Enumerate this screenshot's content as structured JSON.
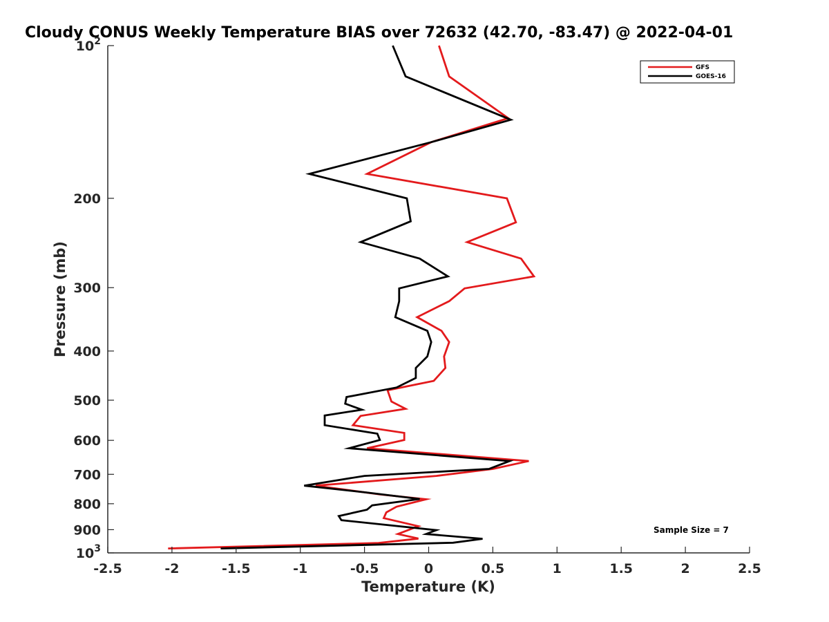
{
  "chart_data": {
    "type": "line",
    "title": "Cloudy CONUS Weekly Temperature BIAS over 72632 (42.70, -83.47) @ 2022-04-01",
    "xlabel": "Temperature (K)",
    "ylabel": "Pressure (mb)",
    "xlim": [
      -2.5,
      2.5
    ],
    "ylim": [
      100,
      1000
    ],
    "y_scale": "log",
    "y_reversed": true,
    "x_ticks": [
      "-2.5",
      "-2",
      "-1.5",
      "-1",
      "-0.5",
      "0",
      "0.5",
      "1",
      "1.5",
      "2",
      "2.5"
    ],
    "y_ticks": [
      {
        "value": 100,
        "base": "10",
        "exp": "2"
      },
      {
        "value": 200,
        "label": "200"
      },
      {
        "value": 300,
        "label": "300"
      },
      {
        "value": 400,
        "label": "400"
      },
      {
        "value": 500,
        "label": "500"
      },
      {
        "value": 600,
        "label": "600"
      },
      {
        "value": 700,
        "label": "700"
      },
      {
        "value": 800,
        "label": "800"
      },
      {
        "value": 900,
        "label": "900"
      },
      {
        "value": 1000,
        "base": "10",
        "exp": "3"
      }
    ],
    "legend_position": "top-right",
    "grid": false,
    "annotation": "Sample Size = 7",
    "series": [
      {
        "name": "GFS",
        "color": "#e31a1c",
        "points": [
          [
            0.08,
            100
          ],
          [
            0.16,
            115
          ],
          [
            0.62,
            139
          ],
          [
            0.02,
            155
          ],
          [
            -0.48,
            179
          ],
          [
            0.61,
            200
          ],
          [
            0.68,
            223
          ],
          [
            0.3,
            244
          ],
          [
            0.72,
            263
          ],
          [
            0.82,
            285
          ],
          [
            0.28,
            301
          ],
          [
            0.16,
            319
          ],
          [
            -0.09,
            343
          ],
          [
            0.1,
            365
          ],
          [
            0.16,
            384
          ],
          [
            0.12,
            410
          ],
          [
            0.13,
            432
          ],
          [
            0.04,
            458
          ],
          [
            -0.32,
            478
          ],
          [
            -0.29,
            503
          ],
          [
            -0.18,
            520
          ],
          [
            -0.53,
            537
          ],
          [
            -0.59,
            560
          ],
          [
            -0.19,
            580
          ],
          [
            -0.19,
            599
          ],
          [
            -0.48,
            622
          ],
          [
            0.78,
            659
          ],
          [
            0.5,
            683
          ],
          [
            0.06,
            705
          ],
          [
            -0.88,
            737
          ],
          [
            -0.38,
            767
          ],
          [
            -0.02,
            784
          ],
          [
            -0.25,
            811
          ],
          [
            -0.33,
            832
          ],
          [
            -0.35,
            854
          ],
          [
            -0.08,
            886
          ],
          [
            -0.24,
            918
          ],
          [
            -0.08,
            937
          ],
          [
            -0.39,
            956
          ],
          [
            -2.03,
            980
          ]
        ]
      },
      {
        "name": "GOES-16",
        "color": "#000000",
        "points": [
          [
            -0.28,
            100
          ],
          [
            -0.18,
            115
          ],
          [
            0.64,
            140
          ],
          [
            0.02,
            155
          ],
          [
            -0.93,
            179
          ],
          [
            -0.17,
            200
          ],
          [
            -0.14,
            222
          ],
          [
            -0.53,
            244
          ],
          [
            -0.07,
            263
          ],
          [
            0.15,
            285
          ],
          [
            -0.23,
            301
          ],
          [
            -0.23,
            319
          ],
          [
            -0.26,
            343
          ],
          [
            -0.01,
            365
          ],
          [
            0.02,
            384
          ],
          [
            -0.01,
            410
          ],
          [
            -0.1,
            432
          ],
          [
            -0.1,
            452
          ],
          [
            -0.25,
            472
          ],
          [
            -0.64,
            493
          ],
          [
            -0.65,
            508
          ],
          [
            -0.52,
            522
          ],
          [
            -0.81,
            536
          ],
          [
            -0.81,
            560
          ],
          [
            -0.4,
            582
          ],
          [
            -0.38,
            599
          ],
          [
            -0.62,
            622
          ],
          [
            0.63,
            659
          ],
          [
            0.47,
            683
          ],
          [
            -0.5,
            705
          ],
          [
            -0.97,
            737
          ],
          [
            -0.49,
            760
          ],
          [
            -0.07,
            783
          ],
          [
            -0.44,
            806
          ],
          [
            -0.48,
            822
          ],
          [
            -0.7,
            846
          ],
          [
            -0.68,
            862
          ],
          [
            0.06,
            902
          ],
          [
            -0.02,
            918
          ],
          [
            0.42,
            938
          ],
          [
            0.19,
            955
          ],
          [
            -1.62,
            980
          ]
        ]
      }
    ]
  }
}
